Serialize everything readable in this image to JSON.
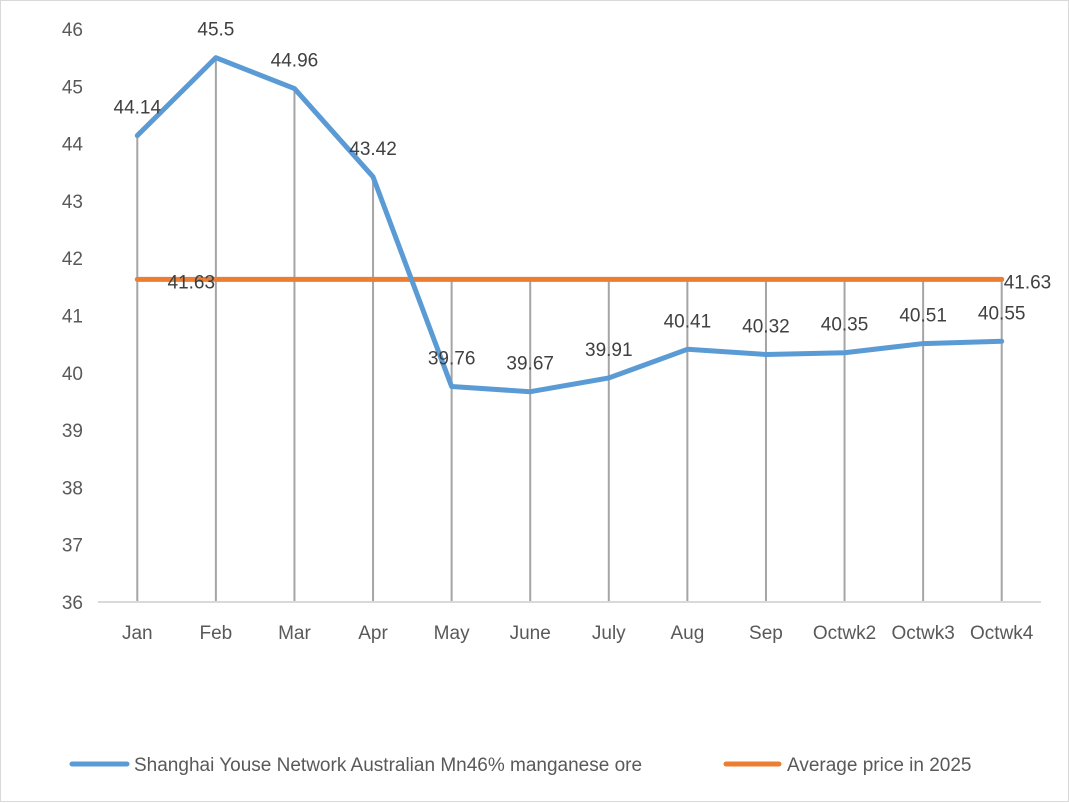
{
  "chart_data": {
    "type": "line",
    "title": "",
    "xlabel": "",
    "ylabel": "",
    "categories": [
      "Jan",
      "Feb",
      "Mar",
      "Apr",
      "May",
      "June",
      "July",
      "Aug",
      "Sep",
      "Octwk2",
      "Octwk3",
      "Octwk4"
    ],
    "ylim": [
      36,
      46
    ],
    "yticks": [
      36,
      37,
      38,
      39,
      40,
      41,
      42,
      43,
      44,
      45,
      46
    ],
    "grid": false,
    "drop_lines": true,
    "legend_position": "bottom",
    "series": [
      {
        "name": "Shanghai Youse Network Australian Mn46% manganese ore",
        "color": "#5b9bd5",
        "values": [
          44.14,
          45.5,
          44.96,
          43.42,
          39.76,
          39.67,
          39.91,
          40.41,
          40.32,
          40.35,
          40.51,
          40.55
        ],
        "data_labels": [
          "44.14",
          "45.5",
          "44.96",
          "43.42",
          "39.76",
          "39.67",
          "39.91",
          "40.41",
          "40.32",
          "40.35",
          "40.51",
          "40.55"
        ]
      },
      {
        "name": "Average price in 2025",
        "color": "#ed7d31",
        "values": [
          41.63,
          41.63,
          41.63,
          41.63,
          41.63,
          41.63,
          41.63,
          41.63,
          41.63,
          41.63,
          41.63,
          41.63
        ],
        "data_labels": {
          "first": "41.63",
          "last": "41.63"
        }
      }
    ]
  }
}
